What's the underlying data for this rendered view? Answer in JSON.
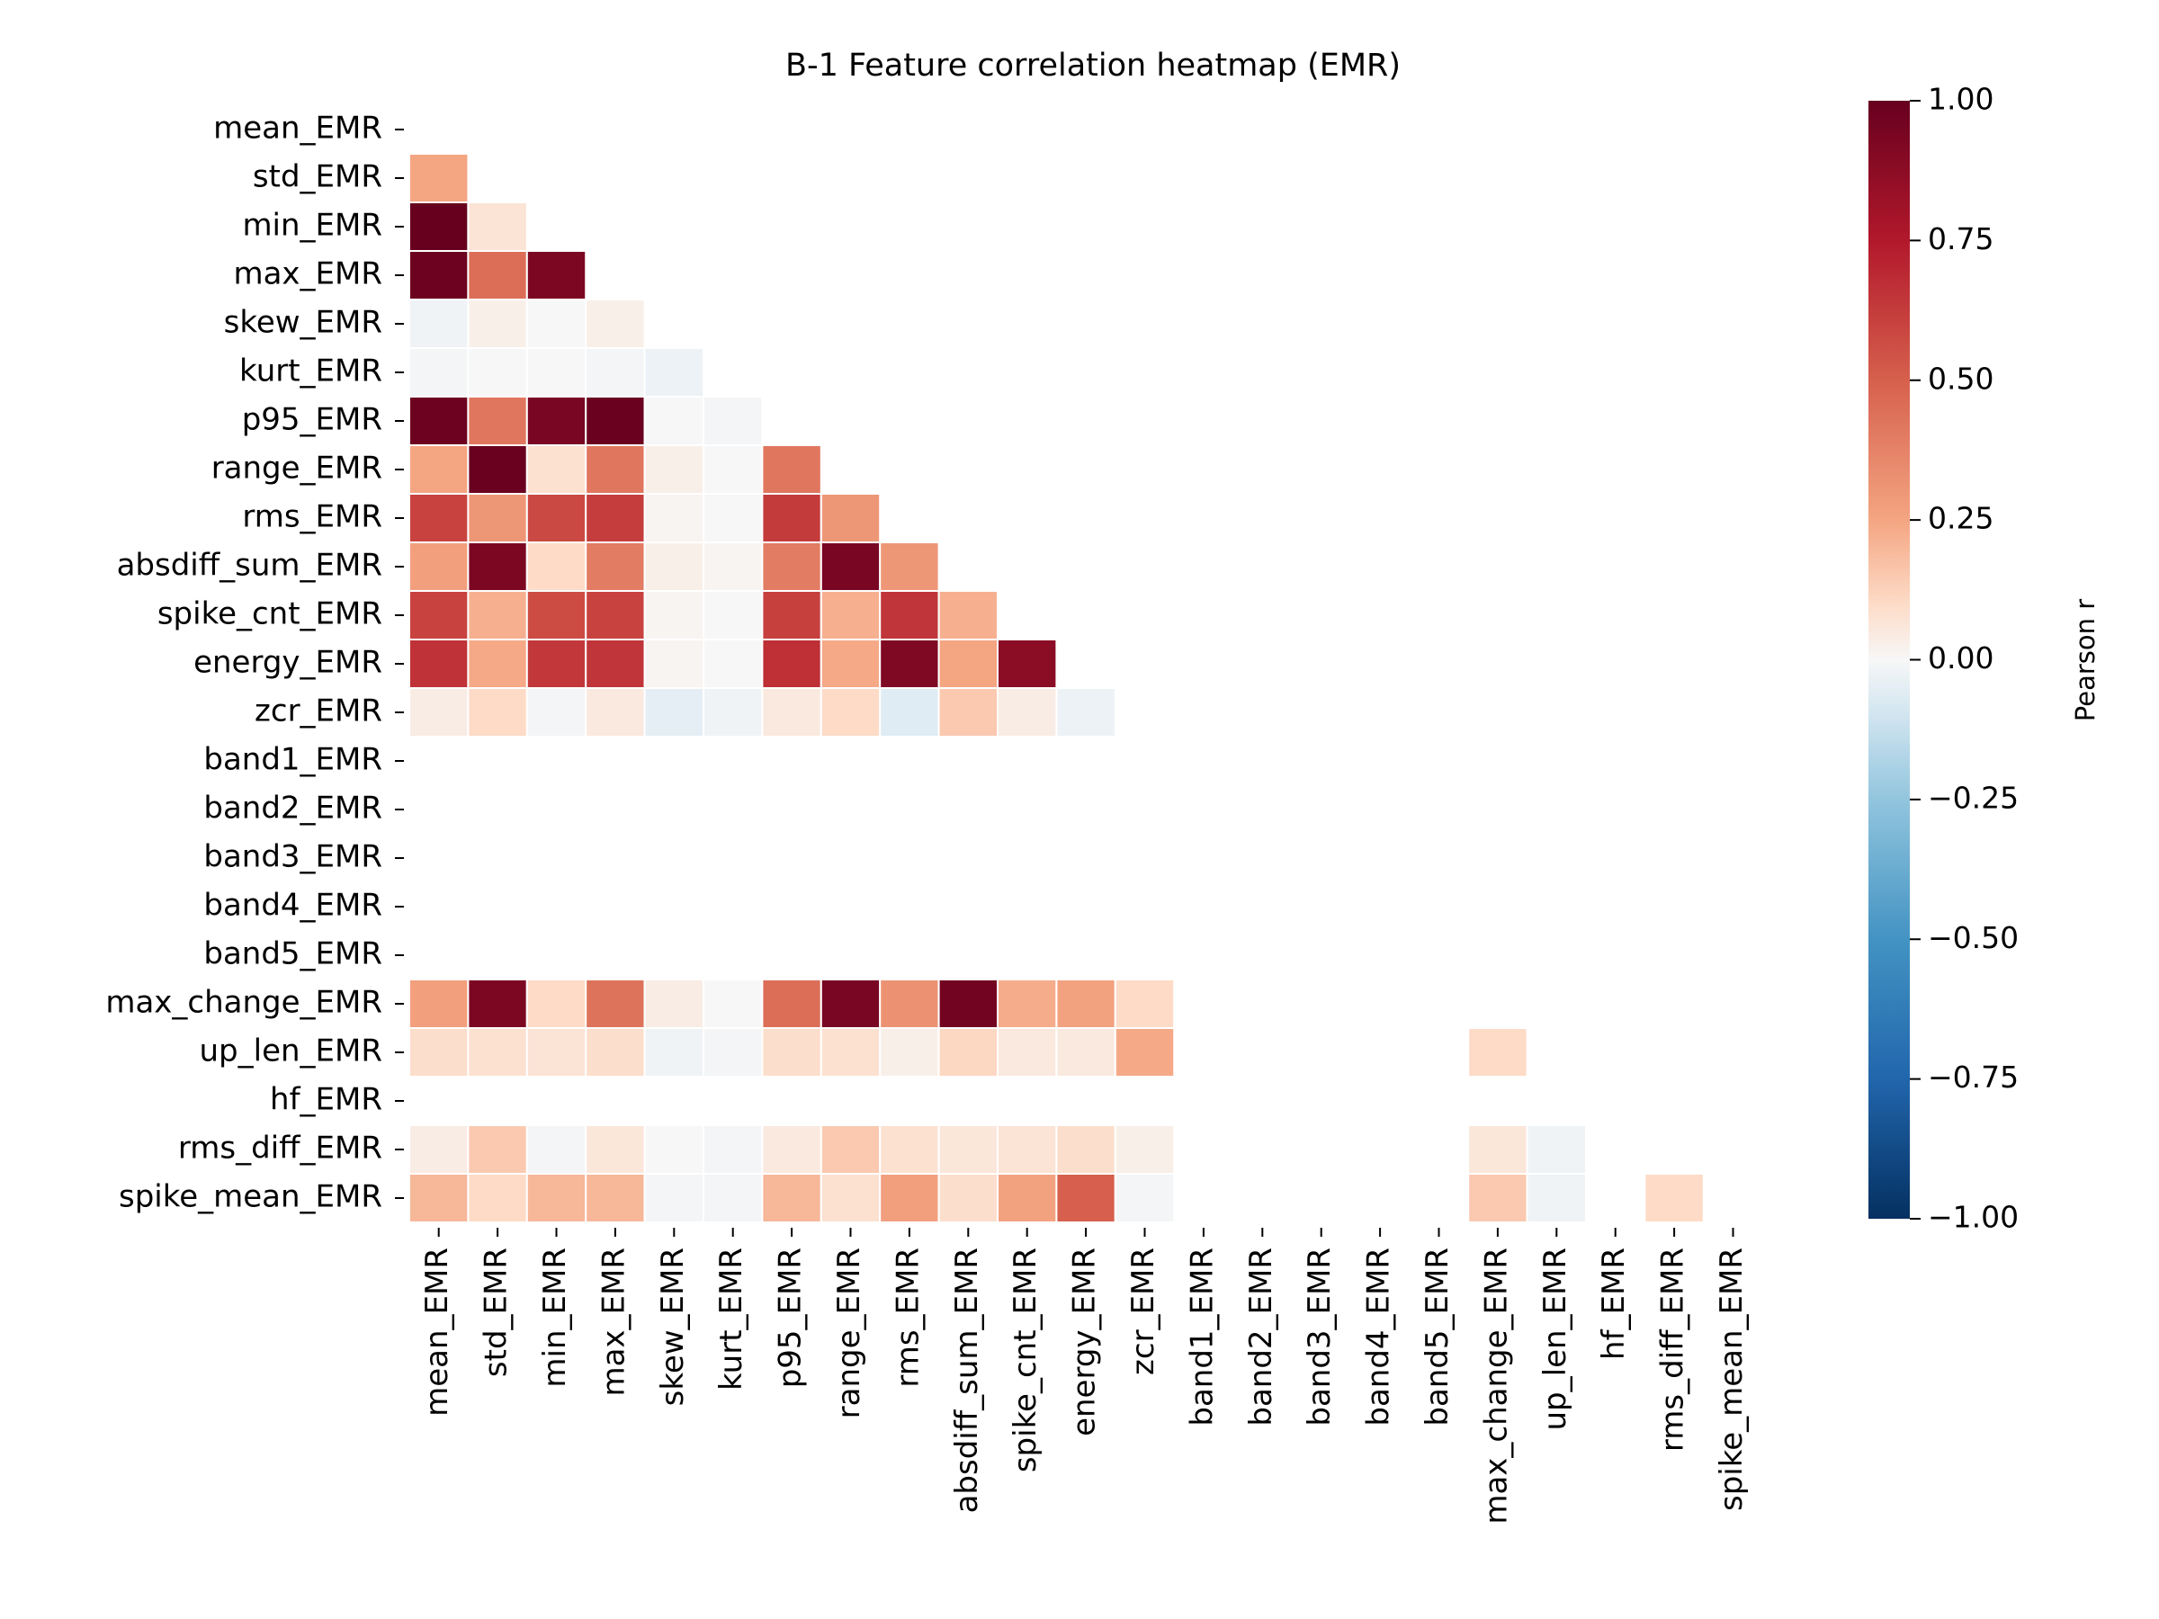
{
  "chart_data": {
    "type": "heatmap",
    "title": "B-1  Feature correlation heatmap (EMR)",
    "colorbar_label": "Pearson r",
    "colormap": "RdBu_r",
    "vmin": -1.0,
    "vmax": 1.0,
    "colorbar_ticks": [
      "1.00",
      "0.75",
      "0.50",
      "0.25",
      "0.00",
      "−0.25",
      "−0.50",
      "−0.75",
      "−1.00"
    ],
    "colorbar_tick_values": [
      1.0,
      0.75,
      0.5,
      0.25,
      0.0,
      -0.25,
      -0.5,
      -0.75,
      -1.0
    ],
    "mask": "upper triangle and diagonal hidden; NaN cells blank",
    "labels": [
      "mean_EMR",
      "std_EMR",
      "min_EMR",
      "max_EMR",
      "skew_EMR",
      "kurt_EMR",
      "p95_EMR",
      "range_EMR",
      "rms_EMR",
      "absdiff_sum_EMR",
      "spike_cnt_EMR",
      "energy_EMR",
      "zcr_EMR",
      "band1_EMR",
      "band2_EMR",
      "band3_EMR",
      "band4_EMR",
      "band5_EMR",
      "max_change_EMR",
      "up_len_EMR",
      "hf_EMR",
      "rms_diff_EMR",
      "spike_mean_EMR"
    ],
    "matrix": [
      [],
      [
        0.25
      ],
      [
        1.0,
        0.07
      ],
      [
        0.98,
        0.45,
        0.93
      ],
      [
        -0.02,
        0.03,
        0.0,
        0.03
      ],
      [
        -0.01,
        0.0,
        0.0,
        -0.01,
        -0.03
      ],
      [
        0.98,
        0.42,
        0.94,
        0.99,
        0.0,
        -0.01
      ],
      [
        0.25,
        0.99,
        0.08,
        0.42,
        0.03,
        0.0,
        0.42
      ],
      [
        0.6,
        0.3,
        0.58,
        0.62,
        0.01,
        0.0,
        0.63,
        0.3
      ],
      [
        0.27,
        0.93,
        0.1,
        0.4,
        0.03,
        0.01,
        0.4,
        0.94,
        0.3
      ],
      [
        0.6,
        0.22,
        0.57,
        0.6,
        0.01,
        0.0,
        0.61,
        0.22,
        0.65,
        0.22
      ],
      [
        0.66,
        0.24,
        0.64,
        0.65,
        0.01,
        0.0,
        0.67,
        0.24,
        0.92,
        0.25,
        0.88
      ],
      [
        0.04,
        0.1,
        -0.01,
        0.05,
        -0.05,
        -0.02,
        0.05,
        0.1,
        -0.06,
        0.15,
        0.04,
        -0.03
      ],
      [
        null,
        null,
        null,
        null,
        null,
        null,
        null,
        null,
        null,
        null,
        null,
        null,
        null
      ],
      [
        null,
        null,
        null,
        null,
        null,
        null,
        null,
        null,
        null,
        null,
        null,
        null,
        null,
        null
      ],
      [
        null,
        null,
        null,
        null,
        null,
        null,
        null,
        null,
        null,
        null,
        null,
        null,
        null,
        null,
        null
      ],
      [
        null,
        null,
        null,
        null,
        null,
        null,
        null,
        null,
        null,
        null,
        null,
        null,
        null,
        null,
        null,
        null
      ],
      [
        null,
        null,
        null,
        null,
        null,
        null,
        null,
        null,
        null,
        null,
        null,
        null,
        null,
        null,
        null,
        null,
        null
      ],
      [
        0.27,
        0.93,
        0.1,
        0.43,
        0.04,
        0.0,
        0.45,
        0.94,
        0.32,
        0.96,
        0.23,
        0.26,
        0.1,
        null,
        null,
        null,
        null,
        null
      ],
      [
        0.09,
        0.08,
        0.07,
        0.09,
        -0.02,
        -0.01,
        0.09,
        0.08,
        0.03,
        0.11,
        0.05,
        0.05,
        0.24,
        null,
        null,
        null,
        null,
        null,
        0.1
      ],
      [
        null,
        null,
        null,
        null,
        null,
        null,
        null,
        null,
        null,
        null,
        null,
        null,
        null,
        null,
        null,
        null,
        null,
        null,
        null,
        null
      ],
      [
        0.04,
        0.15,
        -0.01,
        0.06,
        0.0,
        -0.01,
        0.05,
        0.15,
        0.08,
        0.06,
        0.07,
        0.09,
        0.03,
        null,
        null,
        null,
        null,
        null,
        0.06,
        -0.02,
        null
      ],
      [
        0.2,
        0.1,
        0.2,
        0.2,
        -0.01,
        -0.01,
        0.2,
        0.08,
        0.27,
        0.09,
        0.26,
        0.5,
        -0.01,
        null,
        null,
        null,
        null,
        null,
        0.15,
        -0.02,
        null,
        0.1
      ]
    ]
  }
}
